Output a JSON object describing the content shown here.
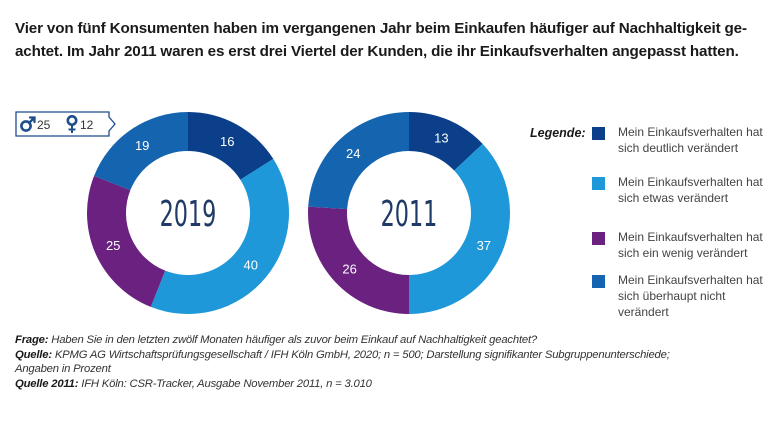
{
  "title": {
    "line1": "Vier von fünf Konsumenten haben im vergangenen Jahr beim Einkaufen häufiger auf Nachhaltigkeit ge-",
    "line2": "achtet. Im Jahr 2011 waren es erst drei Viertel der Kunden, die ihr Einkaufsverhalten angepasst hatten."
  },
  "gender_badge": {
    "male_icon": "male-symbol-icon",
    "male_value": "25",
    "female_icon": "female-symbol-icon",
    "female_value": "12",
    "color": "#1f4e8c"
  },
  "legend": {
    "title": "Legende:",
    "items": [
      {
        "label": "Mein Einkaufsverhalten hat sich deutlich verändert",
        "color": "#0b3f8a"
      },
      {
        "label": "Mein Einkaufsverhalten hat sich etwas verändert",
        "color": "#1e98d8"
      },
      {
        "label": "Mein Einkaufsverhalten hat sich ein wenig verändert",
        "color": "#6b2180"
      },
      {
        "label": "Mein Einkaufsverhalten hat sich überhaupt nicht verändert",
        "color": "#1464b0"
      }
    ]
  },
  "notes": {
    "frage_label": "Frage:",
    "frage_text": " Haben Sie in den letzten zwölf Monaten häufiger als zuvor beim Einkauf auf Nachhaltigkeit geachtet?",
    "quelle_label": "Quelle:",
    "quelle_text": " KPMG AG Wirtschaftsprüfungsgesellschaft / IFH Köln GmbH, 2020; n = 500; Darstellung signifikanter Subgruppenunterschiede;",
    "quelle_text2": "Angaben in Prozent",
    "quelle2011_label": "Quelle 2011:",
    "quelle2011_text": " IFH Köln: CSR-Tracker, Ausgabe November 2011, n = 3.010"
  },
  "chart_data": [
    {
      "type": "pie",
      "variant": "donut",
      "center_label": "2019",
      "categories": [
        "Mein Einkaufsverhalten hat sich deutlich verändert",
        "Mein Einkaufsverhalten hat sich etwas verändert",
        "Mein Einkaufsverhalten hat sich ein wenig verändert",
        "Mein Einkaufsverhalten hat sich überhaupt nicht verändert"
      ],
      "values": [
        16,
        40,
        25,
        19
      ],
      "colors": [
        "#0b3f8a",
        "#1e98d8",
        "#6b2180",
        "#1464b0"
      ],
      "unit": "%"
    },
    {
      "type": "pie",
      "variant": "donut",
      "center_label": "2011",
      "categories": [
        "Mein Einkaufsverhalten hat sich deutlich verändert",
        "Mein Einkaufsverhalten hat sich etwas verändert",
        "Mein Einkaufsverhalten hat sich ein wenig verändert",
        "Mein Einkaufsverhalten hat sich überhaupt nicht verändert"
      ],
      "values": [
        13,
        37,
        26,
        24
      ],
      "colors": [
        "#0b3f8a",
        "#1e98d8",
        "#6b2180",
        "#1464b0"
      ],
      "unit": "%"
    }
  ]
}
